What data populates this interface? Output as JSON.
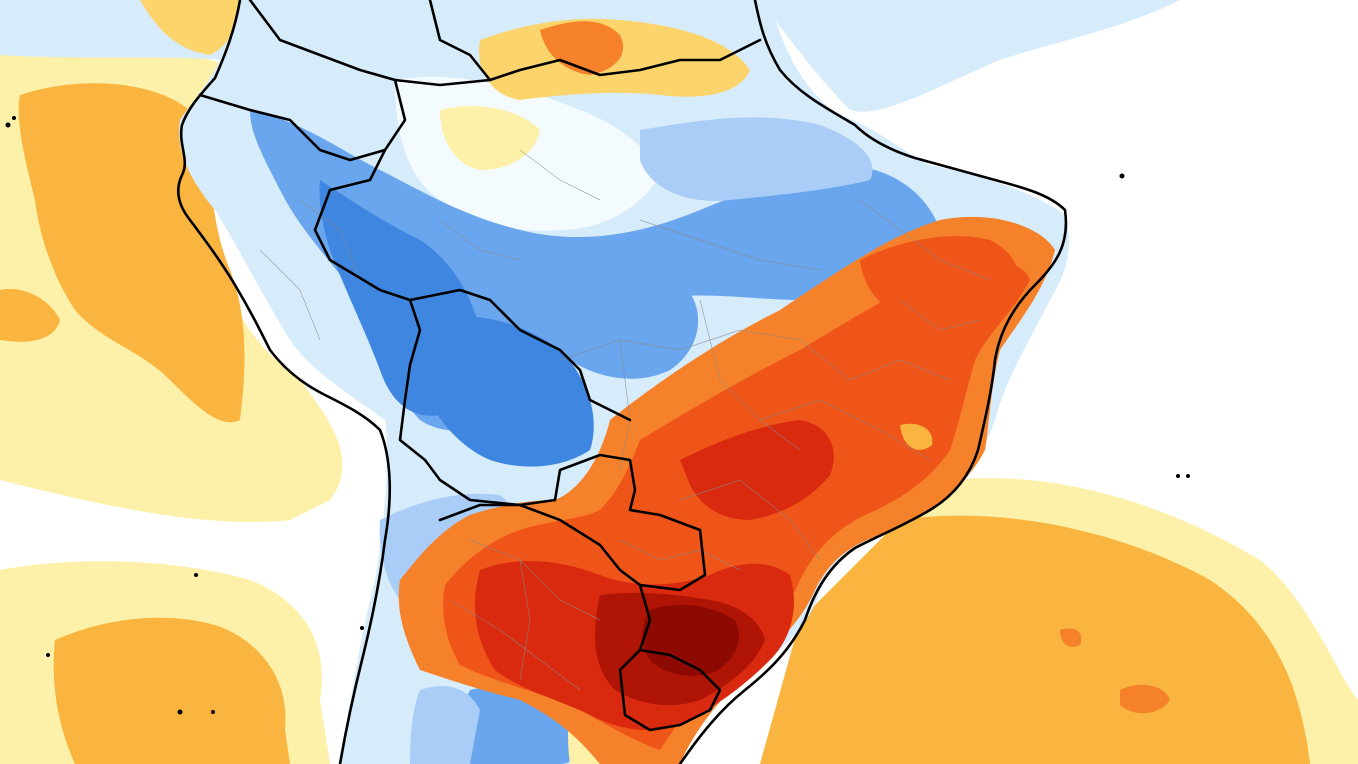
{
  "map": {
    "region": "South America",
    "type": "temperature anomaly",
    "palette": {
      "strong_cold": "#3f86e0",
      "cold": "#6aa6ee",
      "light_cold": "#a9cdf7",
      "pale_cold": "#d7ecfb",
      "neutral": "#ffffff",
      "pale_warm": "#fdf0a8",
      "light_warm": "#fbd46c",
      "warm": "#f9b540",
      "warm_orange": "#f5822a",
      "hot": "#ef5418",
      "very_hot": "#d92a10",
      "extreme_hot": "#b01405",
      "extreme_core": "#8c0a02",
      "border": "#000000",
      "internal_border": "#8a8a8a"
    }
  }
}
